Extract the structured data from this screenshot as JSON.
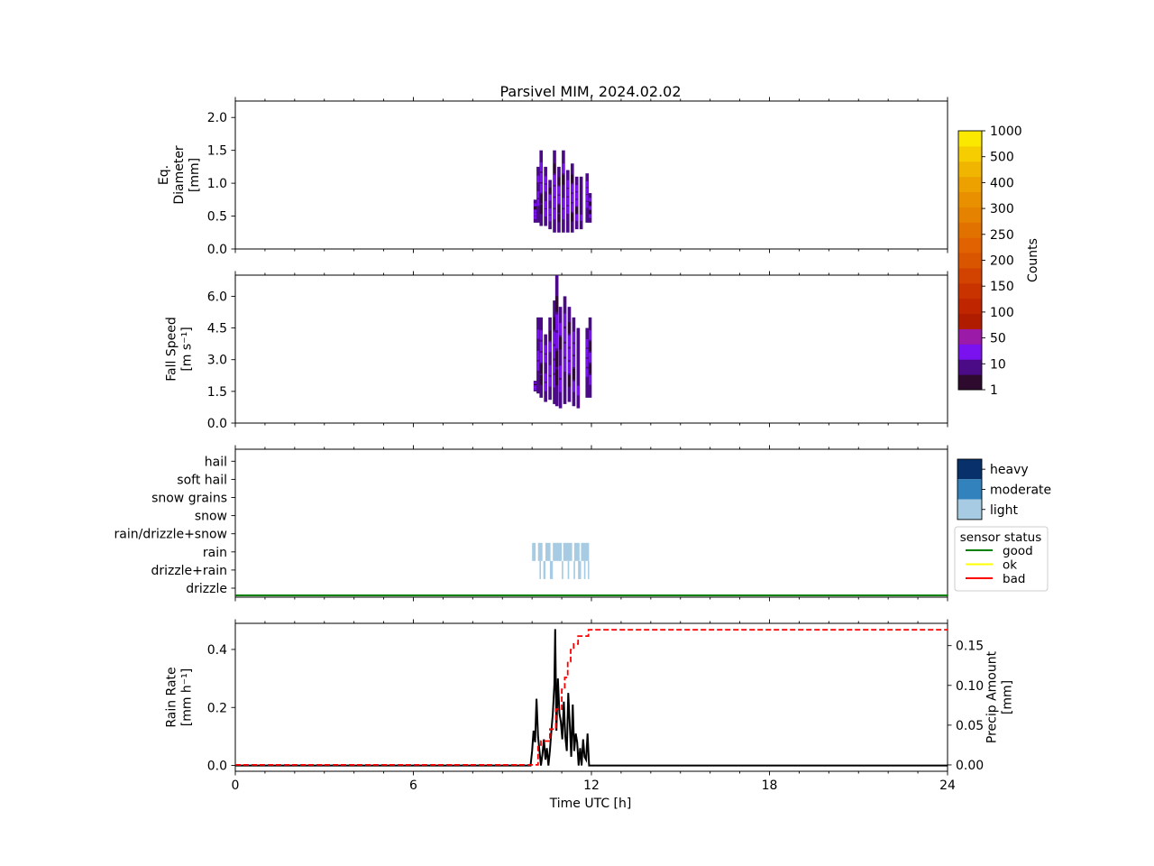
{
  "title": "Parsivel MIM, 2024.02.02",
  "xaxis": {
    "label": "Time UTC [h]",
    "range": [
      0,
      24
    ],
    "ticks": [
      "0",
      "6",
      "12",
      "18",
      "24"
    ]
  },
  "colorbar": {
    "label": "Counts",
    "ticks": [
      "1",
      "10",
      "50",
      "100",
      "150",
      "200",
      "250",
      "300",
      "400",
      "500",
      "1000"
    ],
    "colors": [
      "#2d0a2e",
      "#4b0b86",
      "#7a12f0",
      "#9b1aa8",
      "#b01c00",
      "#bf2600",
      "#c93300",
      "#d24200",
      "#da5500",
      "#e06200",
      "#e27200",
      "#e58300",
      "#e89000",
      "#eca100",
      "#f0b500",
      "#f6cd00",
      "#fbe800"
    ]
  },
  "intensity_legend": {
    "items": [
      {
        "label": "heavy",
        "color": "#08306b"
      },
      {
        "label": "moderate",
        "color": "#3182bd"
      },
      {
        "label": "light",
        "color": "#a6cbe3"
      }
    ]
  },
  "status_legend": {
    "title": "sensor status",
    "items": [
      {
        "label": "good",
        "color": "#008000"
      },
      {
        "label": "ok",
        "color": "#ffff00"
      },
      {
        "label": "bad",
        "color": "#ff0000"
      }
    ]
  },
  "chart_data": [
    {
      "type": "heatmap",
      "name": "diameter",
      "ylabel": "Eq. Diameter [mm]",
      "ylabel_lines": [
        "Eq.",
        "Diameter",
        "[mm]"
      ],
      "ylim": [
        0,
        2.25
      ],
      "yticks": [
        "0.0",
        "0.5",
        "1.0",
        "1.5",
        "2.0"
      ],
      "columns": [
        {
          "t": 10.05,
          "lo": 0.4,
          "hi": 0.75
        },
        {
          "t": 10.15,
          "lo": 0.4,
          "hi": 1.25
        },
        {
          "t": 10.25,
          "lo": 0.35,
          "hi": 1.5
        },
        {
          "t": 10.4,
          "lo": 0.35,
          "hi": 1.25
        },
        {
          "t": 10.55,
          "lo": 0.3,
          "hi": 1.05
        },
        {
          "t": 10.7,
          "lo": 0.25,
          "hi": 1.5
        },
        {
          "t": 10.85,
          "lo": 0.25,
          "hi": 1.25
        },
        {
          "t": 11.0,
          "lo": 0.25,
          "hi": 1.5
        },
        {
          "t": 11.15,
          "lo": 0.25,
          "hi": 1.2
        },
        {
          "t": 11.3,
          "lo": 0.25,
          "hi": 1.3
        },
        {
          "t": 11.45,
          "lo": 0.3,
          "hi": 1.1
        },
        {
          "t": 11.6,
          "lo": 0.3,
          "hi": 1.1
        },
        {
          "t": 11.8,
          "lo": 0.4,
          "hi": 1.15
        },
        {
          "t": 11.9,
          "lo": 0.4,
          "hi": 0.85
        }
      ]
    },
    {
      "type": "heatmap",
      "name": "fall_speed",
      "ylabel": "Fall Speed [m s⁻¹]",
      "ylabel_lines": [
        "Fall Speed",
        "[m s⁻¹]"
      ],
      "ylim": [
        0,
        7.0
      ],
      "yticks": [
        "0.0",
        "1.5",
        "3.0",
        "4.5",
        "6.0"
      ],
      "columns": [
        {
          "t": 10.05,
          "lo": 1.5,
          "hi": 2.0
        },
        {
          "t": 10.15,
          "lo": 1.4,
          "hi": 5.0
        },
        {
          "t": 10.25,
          "lo": 1.2,
          "hi": 5.0
        },
        {
          "t": 10.4,
          "lo": 1.0,
          "hi": 4.2
        },
        {
          "t": 10.55,
          "lo": 1.1,
          "hi": 5.0
        },
        {
          "t": 10.7,
          "lo": 0.9,
          "hi": 5.8
        },
        {
          "t": 10.78,
          "lo": 0.8,
          "hi": 7.0
        },
        {
          "t": 10.9,
          "lo": 0.7,
          "hi": 5.5
        },
        {
          "t": 11.05,
          "lo": 0.9,
          "hi": 6.0
        },
        {
          "t": 11.2,
          "lo": 1.0,
          "hi": 5.5
        },
        {
          "t": 11.35,
          "lo": 0.8,
          "hi": 5.0
        },
        {
          "t": 11.5,
          "lo": 0.7,
          "hi": 4.5
        },
        {
          "t": 11.8,
          "lo": 1.2,
          "hi": 4.5
        },
        {
          "t": 11.9,
          "lo": 1.2,
          "hi": 5.0
        }
      ]
    },
    {
      "type": "heatmap",
      "name": "precip_type",
      "categories": [
        "drizzle",
        "drizzle+rain",
        "rain",
        "rain/drizzle+snow",
        "snow",
        "snow grains",
        "soft hail",
        "hail"
      ],
      "rain_intervals": [
        [
          10.0,
          10.12
        ],
        [
          10.2,
          10.35
        ],
        [
          10.45,
          10.62
        ],
        [
          10.7,
          11.0
        ],
        [
          11.05,
          11.35
        ],
        [
          11.42,
          11.6
        ],
        [
          11.65,
          11.92
        ]
      ],
      "drizzle_rain_intervals": [
        [
          10.25,
          10.3
        ],
        [
          10.38,
          10.45
        ],
        [
          10.6,
          10.7
        ],
        [
          11.0,
          11.05
        ],
        [
          11.2,
          11.25
        ],
        [
          11.4,
          11.45
        ],
        [
          11.55,
          11.65
        ],
        [
          11.75,
          11.8
        ],
        [
          11.88,
          11.92
        ]
      ],
      "status_line": {
        "value": "good",
        "range": [
          0,
          24
        ]
      }
    },
    {
      "type": "line",
      "name": "rain",
      "ylabel": "Rain Rate [mm h⁻¹]",
      "ylabel_lines": [
        "Rain Rate",
        "[mm h⁻¹]"
      ],
      "ylim": [
        -0.02,
        0.49
      ],
      "yticks": [
        "0.0",
        "0.2",
        "0.4"
      ],
      "y2label": "Precip Amount [mm]",
      "y2label_lines": [
        "Precip Amount",
        "[mm]"
      ],
      "y2lim": [
        -0.008,
        0.178
      ],
      "y2ticks": [
        "0.00",
        "0.05",
        "0.10",
        "0.15"
      ],
      "series": [
        {
          "label": "rain rate",
          "color": "#000000",
          "x": [
            0,
            9.95,
            10.0,
            10.05,
            10.1,
            10.15,
            10.2,
            10.25,
            10.3,
            10.35,
            10.4,
            10.45,
            10.5,
            10.55,
            10.6,
            10.65,
            10.7,
            10.75,
            10.78,
            10.82,
            10.87,
            10.92,
            10.97,
            11.02,
            11.07,
            11.12,
            11.17,
            11.22,
            11.27,
            11.32,
            11.37,
            11.42,
            11.47,
            11.52,
            11.57,
            11.62,
            11.67,
            11.72,
            11.77,
            11.82,
            11.87,
            11.92,
            12.0,
            24
          ],
          "y": [
            0,
            0,
            0.05,
            0.12,
            0.08,
            0.23,
            0.1,
            0.05,
            0.0,
            0.04,
            0.09,
            0.02,
            0.06,
            0.0,
            0.05,
            0.12,
            0.18,
            0.28,
            0.47,
            0.12,
            0.3,
            0.18,
            0.15,
            0.09,
            0.22,
            0.1,
            0.05,
            0.25,
            0.14,
            0.03,
            0.21,
            0.05,
            0.11,
            0.08,
            0.0,
            0.06,
            0.0,
            0.09,
            0.03,
            0.02,
            0.11,
            0.0,
            0,
            0
          ]
        },
        {
          "label": "precip amount",
          "color": "#ff0000",
          "dashed": true,
          "x": [
            0,
            10.0,
            10.2,
            10.3,
            10.55,
            10.6,
            10.8,
            11.0,
            11.1,
            11.2,
            11.3,
            11.4,
            11.55,
            11.8,
            11.9,
            24
          ],
          "y": [
            0,
            0,
            0.025,
            0.03,
            0.03,
            0.045,
            0.07,
            0.095,
            0.11,
            0.13,
            0.145,
            0.152,
            0.162,
            0.162,
            0.17,
            0.17
          ]
        }
      ]
    }
  ]
}
